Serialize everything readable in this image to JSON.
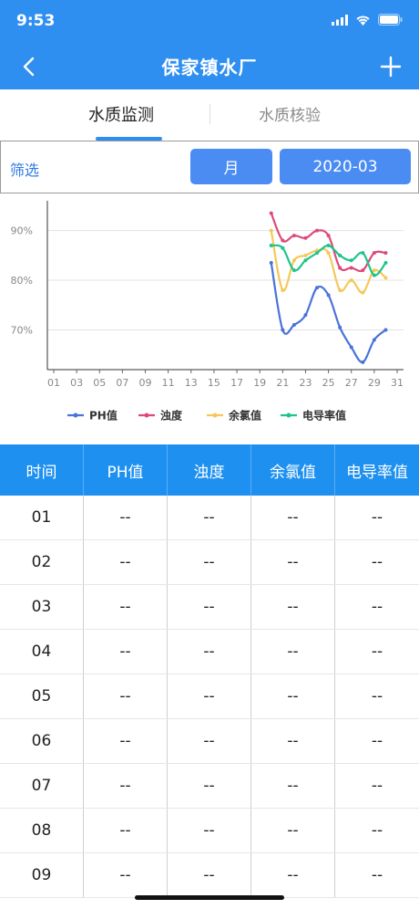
{
  "status_bar": {
    "time": "9:53"
  },
  "nav": {
    "title": "保家镇水厂"
  },
  "tabs": [
    {
      "label": "水质监测",
      "active": true
    },
    {
      "label": "水质核验",
      "active": false
    }
  ],
  "filter": {
    "label": "筛选",
    "period": "月",
    "date": "2020-03"
  },
  "chart_data": {
    "type": "line",
    "x_ticks": [
      "01",
      "03",
      "05",
      "07",
      "09",
      "11",
      "13",
      "15",
      "17",
      "19",
      "21",
      "23",
      "25",
      "27",
      "29",
      "31"
    ],
    "y_ticks": [
      "70%",
      "80%",
      "90%"
    ],
    "ylim": [
      62,
      96
    ],
    "xlim": [
      1,
      31
    ],
    "legend_position": "bottom",
    "series": [
      {
        "name": "PH值",
        "color": "#4a73d9",
        "x": [
          20,
          21,
          22,
          23,
          24,
          25,
          26,
          27,
          28,
          29,
          30
        ],
        "y": [
          83.5,
          70,
          71,
          73,
          78.5,
          77,
          70.5,
          66.5,
          63.5,
          68,
          70
        ]
      },
      {
        "name": "浊度",
        "color": "#dd4a78",
        "x": [
          20,
          21,
          22,
          23,
          24,
          25,
          26,
          27,
          28,
          29,
          30
        ],
        "y": [
          93.5,
          88,
          89,
          88.5,
          90,
          89,
          82.5,
          82.5,
          82,
          85.5,
          85.5
        ]
      },
      {
        "name": "余氯值",
        "color": "#f5c85a",
        "x": [
          20,
          21,
          22,
          23,
          24,
          25,
          26,
          27,
          28,
          29,
          30
        ],
        "y": [
          90,
          78,
          84,
          85,
          86,
          85.5,
          78,
          80,
          77.5,
          82,
          80.5
        ]
      },
      {
        "name": "电导率值",
        "color": "#1fc48c",
        "x": [
          20,
          21,
          22,
          23,
          24,
          25,
          26,
          27,
          28,
          29,
          30
        ],
        "y": [
          87,
          86.5,
          82,
          84,
          85.5,
          87,
          85,
          84,
          85.5,
          81,
          83.5
        ]
      }
    ]
  },
  "table": {
    "headers": [
      "时间",
      "PH值",
      "浊度",
      "余氯值",
      "电导率值"
    ],
    "rows": [
      [
        "01",
        "--",
        "--",
        "--",
        "--"
      ],
      [
        "02",
        "--",
        "--",
        "--",
        "--"
      ],
      [
        "03",
        "--",
        "--",
        "--",
        "--"
      ],
      [
        "04",
        "--",
        "--",
        "--",
        "--"
      ],
      [
        "05",
        "--",
        "--",
        "--",
        "--"
      ],
      [
        "06",
        "--",
        "--",
        "--",
        "--"
      ],
      [
        "07",
        "--",
        "--",
        "--",
        "--"
      ],
      [
        "08",
        "--",
        "--",
        "--",
        "--"
      ],
      [
        "09",
        "--",
        "--",
        "--",
        "--"
      ]
    ]
  }
}
